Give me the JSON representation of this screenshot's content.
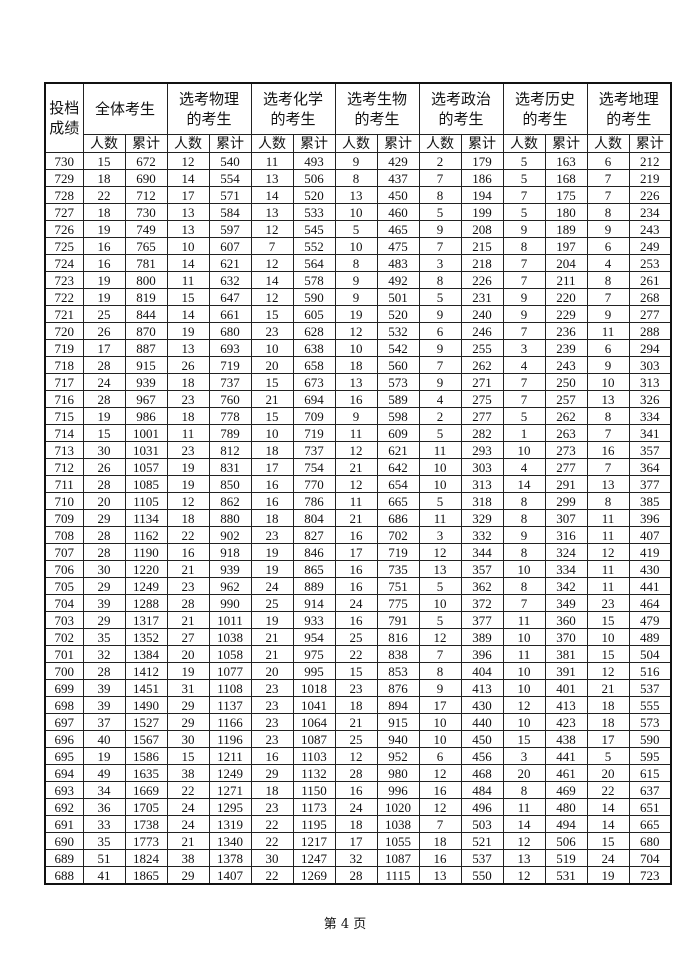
{
  "header": {
    "score_label": "投档成绩",
    "groups": [
      "全体考生",
      "选考物理的考生",
      "选考化学的考生",
      "选考生物的考生",
      "选考政治的考生",
      "选考历史的考生",
      "选考地理的考生"
    ],
    "count_label": "人数",
    "cumulative_label": "累计"
  },
  "rows": [
    [
      "730",
      "15",
      "672",
      "12",
      "540",
      "11",
      "493",
      "9",
      "429",
      "2",
      "179",
      "5",
      "163",
      "6",
      "212"
    ],
    [
      "729",
      "18",
      "690",
      "14",
      "554",
      "13",
      "506",
      "8",
      "437",
      "7",
      "186",
      "5",
      "168",
      "7",
      "219"
    ],
    [
      "728",
      "22",
      "712",
      "17",
      "571",
      "14",
      "520",
      "13",
      "450",
      "8",
      "194",
      "7",
      "175",
      "7",
      "226"
    ],
    [
      "727",
      "18",
      "730",
      "13",
      "584",
      "13",
      "533",
      "10",
      "460",
      "5",
      "199",
      "5",
      "180",
      "8",
      "234"
    ],
    [
      "726",
      "19",
      "749",
      "13",
      "597",
      "12",
      "545",
      "5",
      "465",
      "9",
      "208",
      "9",
      "189",
      "9",
      "243"
    ],
    [
      "725",
      "16",
      "765",
      "10",
      "607",
      "7",
      "552",
      "10",
      "475",
      "7",
      "215",
      "8",
      "197",
      "6",
      "249"
    ],
    [
      "724",
      "16",
      "781",
      "14",
      "621",
      "12",
      "564",
      "8",
      "483",
      "3",
      "218",
      "7",
      "204",
      "4",
      "253"
    ],
    [
      "723",
      "19",
      "800",
      "11",
      "632",
      "14",
      "578",
      "9",
      "492",
      "8",
      "226",
      "7",
      "211",
      "8",
      "261"
    ],
    [
      "722",
      "19",
      "819",
      "15",
      "647",
      "12",
      "590",
      "9",
      "501",
      "5",
      "231",
      "9",
      "220",
      "7",
      "268"
    ],
    [
      "721",
      "25",
      "844",
      "14",
      "661",
      "15",
      "605",
      "19",
      "520",
      "9",
      "240",
      "9",
      "229",
      "9",
      "277"
    ],
    [
      "720",
      "26",
      "870",
      "19",
      "680",
      "23",
      "628",
      "12",
      "532",
      "6",
      "246",
      "7",
      "236",
      "11",
      "288"
    ],
    [
      "719",
      "17",
      "887",
      "13",
      "693",
      "10",
      "638",
      "10",
      "542",
      "9",
      "255",
      "3",
      "239",
      "6",
      "294"
    ],
    [
      "718",
      "28",
      "915",
      "26",
      "719",
      "20",
      "658",
      "18",
      "560",
      "7",
      "262",
      "4",
      "243",
      "9",
      "303"
    ],
    [
      "717",
      "24",
      "939",
      "18",
      "737",
      "15",
      "673",
      "13",
      "573",
      "9",
      "271",
      "7",
      "250",
      "10",
      "313"
    ],
    [
      "716",
      "28",
      "967",
      "23",
      "760",
      "21",
      "694",
      "16",
      "589",
      "4",
      "275",
      "7",
      "257",
      "13",
      "326"
    ],
    [
      "715",
      "19",
      "986",
      "18",
      "778",
      "15",
      "709",
      "9",
      "598",
      "2",
      "277",
      "5",
      "262",
      "8",
      "334"
    ],
    [
      "714",
      "15",
      "1001",
      "11",
      "789",
      "10",
      "719",
      "11",
      "609",
      "5",
      "282",
      "1",
      "263",
      "7",
      "341"
    ],
    [
      "713",
      "30",
      "1031",
      "23",
      "812",
      "18",
      "737",
      "12",
      "621",
      "11",
      "293",
      "10",
      "273",
      "16",
      "357"
    ],
    [
      "712",
      "26",
      "1057",
      "19",
      "831",
      "17",
      "754",
      "21",
      "642",
      "10",
      "303",
      "4",
      "277",
      "7",
      "364"
    ],
    [
      "711",
      "28",
      "1085",
      "19",
      "850",
      "16",
      "770",
      "12",
      "654",
      "10",
      "313",
      "14",
      "291",
      "13",
      "377"
    ],
    [
      "710",
      "20",
      "1105",
      "12",
      "862",
      "16",
      "786",
      "11",
      "665",
      "5",
      "318",
      "8",
      "299",
      "8",
      "385"
    ],
    [
      "709",
      "29",
      "1134",
      "18",
      "880",
      "18",
      "804",
      "21",
      "686",
      "11",
      "329",
      "8",
      "307",
      "11",
      "396"
    ],
    [
      "708",
      "28",
      "1162",
      "22",
      "902",
      "23",
      "827",
      "16",
      "702",
      "3",
      "332",
      "9",
      "316",
      "11",
      "407"
    ],
    [
      "707",
      "28",
      "1190",
      "16",
      "918",
      "19",
      "846",
      "17",
      "719",
      "12",
      "344",
      "8",
      "324",
      "12",
      "419"
    ],
    [
      "706",
      "30",
      "1220",
      "21",
      "939",
      "19",
      "865",
      "16",
      "735",
      "13",
      "357",
      "10",
      "334",
      "11",
      "430"
    ],
    [
      "705",
      "29",
      "1249",
      "23",
      "962",
      "24",
      "889",
      "16",
      "751",
      "5",
      "362",
      "8",
      "342",
      "11",
      "441"
    ],
    [
      "704",
      "39",
      "1288",
      "28",
      "990",
      "25",
      "914",
      "24",
      "775",
      "10",
      "372",
      "7",
      "349",
      "23",
      "464"
    ],
    [
      "703",
      "29",
      "1317",
      "21",
      "1011",
      "19",
      "933",
      "16",
      "791",
      "5",
      "377",
      "11",
      "360",
      "15",
      "479"
    ],
    [
      "702",
      "35",
      "1352",
      "27",
      "1038",
      "21",
      "954",
      "25",
      "816",
      "12",
      "389",
      "10",
      "370",
      "10",
      "489"
    ],
    [
      "701",
      "32",
      "1384",
      "20",
      "1058",
      "21",
      "975",
      "22",
      "838",
      "7",
      "396",
      "11",
      "381",
      "15",
      "504"
    ],
    [
      "700",
      "28",
      "1412",
      "19",
      "1077",
      "20",
      "995",
      "15",
      "853",
      "8",
      "404",
      "10",
      "391",
      "12",
      "516"
    ],
    [
      "699",
      "39",
      "1451",
      "31",
      "1108",
      "23",
      "1018",
      "23",
      "876",
      "9",
      "413",
      "10",
      "401",
      "21",
      "537"
    ],
    [
      "698",
      "39",
      "1490",
      "29",
      "1137",
      "23",
      "1041",
      "18",
      "894",
      "17",
      "430",
      "12",
      "413",
      "18",
      "555"
    ],
    [
      "697",
      "37",
      "1527",
      "29",
      "1166",
      "23",
      "1064",
      "21",
      "915",
      "10",
      "440",
      "10",
      "423",
      "18",
      "573"
    ],
    [
      "696",
      "40",
      "1567",
      "30",
      "1196",
      "23",
      "1087",
      "25",
      "940",
      "10",
      "450",
      "15",
      "438",
      "17",
      "590"
    ],
    [
      "695",
      "19",
      "1586",
      "15",
      "1211",
      "16",
      "1103",
      "12",
      "952",
      "6",
      "456",
      "3",
      "441",
      "5",
      "595"
    ],
    [
      "694",
      "49",
      "1635",
      "38",
      "1249",
      "29",
      "1132",
      "28",
      "980",
      "12",
      "468",
      "20",
      "461",
      "20",
      "615"
    ],
    [
      "693",
      "34",
      "1669",
      "22",
      "1271",
      "18",
      "1150",
      "16",
      "996",
      "16",
      "484",
      "8",
      "469",
      "22",
      "637"
    ],
    [
      "692",
      "36",
      "1705",
      "24",
      "1295",
      "23",
      "1173",
      "24",
      "1020",
      "12",
      "496",
      "11",
      "480",
      "14",
      "651"
    ],
    [
      "691",
      "33",
      "1738",
      "24",
      "1319",
      "22",
      "1195",
      "18",
      "1038",
      "7",
      "503",
      "14",
      "494",
      "14",
      "665"
    ],
    [
      "690",
      "35",
      "1773",
      "21",
      "1340",
      "22",
      "1217",
      "17",
      "1055",
      "18",
      "521",
      "12",
      "506",
      "15",
      "680"
    ],
    [
      "689",
      "51",
      "1824",
      "38",
      "1378",
      "30",
      "1247",
      "32",
      "1087",
      "16",
      "537",
      "13",
      "519",
      "24",
      "704"
    ],
    [
      "688",
      "41",
      "1865",
      "29",
      "1407",
      "22",
      "1269",
      "28",
      "1115",
      "13",
      "550",
      "12",
      "531",
      "19",
      "723"
    ]
  ],
  "footer": {
    "page_label": "第 4 页"
  }
}
